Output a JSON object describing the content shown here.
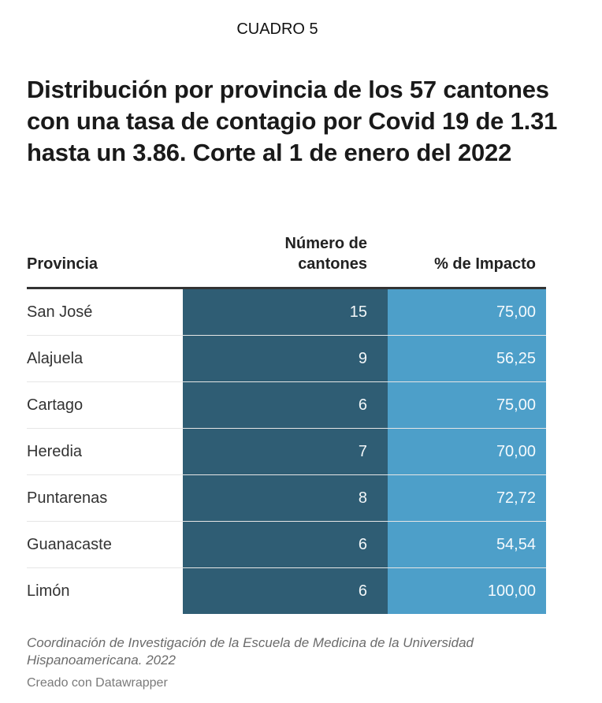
{
  "header": {
    "label": "CUADRO 5",
    "title": "Distribución por provincia de los 57 cantones con una tasa de contagio por Covid 19 de 1.31 hasta un 3.86. Corte al 1 de enero del 2022"
  },
  "table": {
    "columns": [
      "Provincia",
      "Número de cantones",
      "% de Impacto"
    ],
    "column_lines": {
      "cantones": [
        "Número de",
        "cantones"
      ]
    }
  },
  "colors": {
    "cantones_bg": "#2f5d74",
    "impacto_bg": "#4d9fc9"
  },
  "chart_data": {
    "type": "table",
    "title": "Distribución por provincia de los 57 cantones con una tasa de contagio por Covid 19 de 1.31 hasta un 3.86. Corte al 1 de enero del 2022",
    "columns": [
      "Provincia",
      "Número de cantones",
      "% de Impacto"
    ],
    "rows": [
      {
        "provincia": "San José",
        "cantones": "15",
        "impacto": "75,00"
      },
      {
        "provincia": "Alajuela",
        "cantones": "9",
        "impacto": "56,25"
      },
      {
        "provincia": "Cartago",
        "cantones": "6",
        "impacto": "75,00"
      },
      {
        "provincia": "Heredia",
        "cantones": "7",
        "impacto": "70,00"
      },
      {
        "provincia": "Puntarenas",
        "cantones": "8",
        "impacto": "72,72"
      },
      {
        "provincia": "Guanacaste",
        "cantones": "6",
        "impacto": "54,54"
      },
      {
        "provincia": "Limón",
        "cantones": "6",
        "impacto": "100,00"
      }
    ]
  },
  "footer": {
    "source": "Coordinación de Investigación de la Escuela de Medicina de la Universidad Hispanoamericana. 2022",
    "credit": "Creado con Datawrapper"
  }
}
